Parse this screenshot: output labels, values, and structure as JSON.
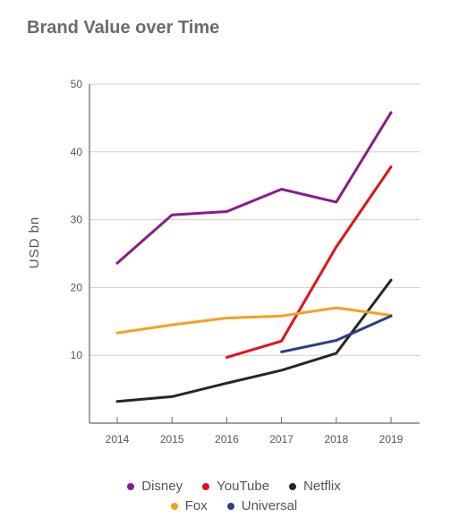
{
  "chart_data": {
    "type": "line",
    "title": "Brand Value over Time",
    "xlabel": "",
    "ylabel": "USD bn",
    "x": [
      2014,
      2015,
      2016,
      2017,
      2018,
      2019
    ],
    "ylim": [
      0,
      50
    ],
    "yticks": [
      10,
      20,
      30,
      40,
      50
    ],
    "grid": true,
    "legend_position": "bottom",
    "series": [
      {
        "name": "Disney",
        "color": "#8b1a8b",
        "values": [
          23.6,
          30.7,
          31.2,
          34.5,
          32.6,
          45.8
        ]
      },
      {
        "name": "YouTube",
        "color": "#e3121b",
        "values": [
          null,
          null,
          9.7,
          12.1,
          26.0,
          37.8
        ]
      },
      {
        "name": "Netflix",
        "color": "#262626",
        "values": [
          3.2,
          3.9,
          5.9,
          7.8,
          10.3,
          21.1
        ]
      },
      {
        "name": "Fox",
        "color": "#f5a01f",
        "values": [
          13.3,
          14.5,
          15.5,
          15.8,
          17.0,
          15.9
        ]
      },
      {
        "name": "Universal",
        "color": "#2e3e8a",
        "values": [
          null,
          null,
          null,
          10.5,
          12.2,
          15.8
        ]
      }
    ]
  }
}
